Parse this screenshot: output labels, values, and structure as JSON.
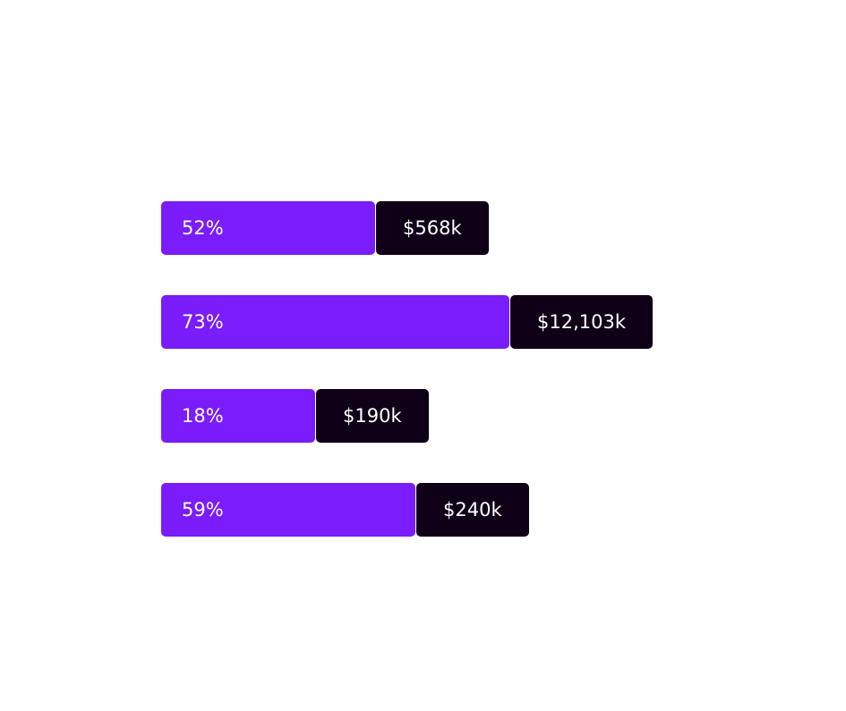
{
  "colors": {
    "percent_bar": "#7a1cfc",
    "value_box": "#0f0018",
    "text": "#ffffff"
  },
  "chart_data": {
    "type": "bar",
    "orientation": "horizontal",
    "rows": [
      {
        "percent": 52,
        "percent_label": "52%",
        "value_label": "$568k"
      },
      {
        "percent": 73,
        "percent_label": "73%",
        "value_label": "$12,103k"
      },
      {
        "percent": 18,
        "percent_label": "18%",
        "value_label": "$190k"
      },
      {
        "percent": 59,
        "percent_label": "59%",
        "value_label": "$240k"
      }
    ]
  }
}
